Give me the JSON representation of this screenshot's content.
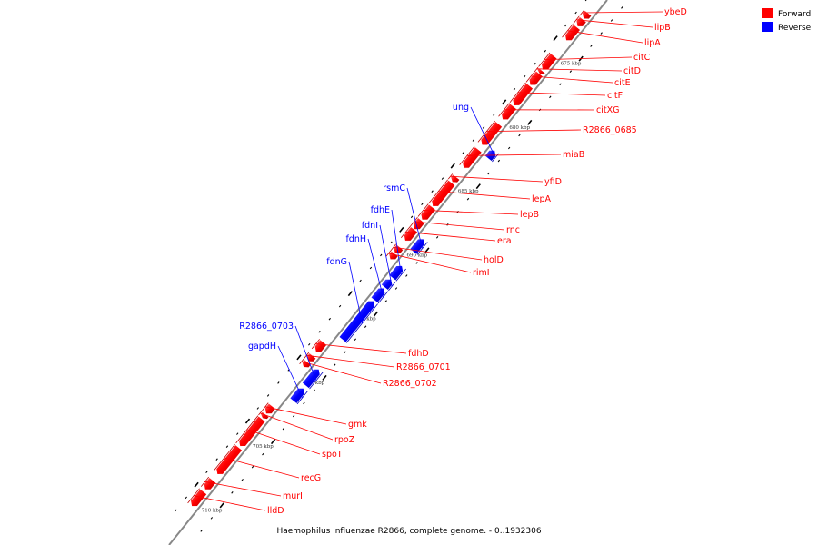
{
  "caption": "Haemophilus influenzae R2866, complete genome. - 0..1932306",
  "legend": [
    {
      "label": "Forward",
      "color": "#ff0000"
    },
    {
      "label": "Reverse",
      "color": "#0000ff"
    }
  ],
  "colors": {
    "forward": "#ff0000",
    "reverse": "#0000ff",
    "axis": "#888888"
  },
  "ticks": [
    {
      "label": "675 kbp",
      "kbp": 675
    },
    {
      "label": "680 kbp",
      "kbp": 680
    },
    {
      "label": "685 kbp",
      "kbp": 685
    },
    {
      "label": "690 kbp",
      "kbp": 690
    },
    {
      "label": "695 kbp",
      "kbp": 695
    },
    {
      "label": "700 kbp",
      "kbp": 700
    },
    {
      "label": "705 kbp",
      "kbp": 705
    },
    {
      "label": "710 kbp",
      "kbp": 710
    }
  ],
  "genes": [
    {
      "name": "ybeD",
      "strand": "forward",
      "start_kbp": 672.55,
      "end_kbp": 673.0
    },
    {
      "name": "lipB",
      "strand": "forward",
      "start_kbp": 673.05,
      "end_kbp": 673.6
    },
    {
      "name": "lipA",
      "strand": "forward",
      "start_kbp": 673.65,
      "end_kbp": 674.7
    },
    {
      "name": "citC",
      "strand": "forward",
      "start_kbp": 675.9,
      "end_kbp": 677.0
    },
    {
      "name": "citD",
      "strand": "forward",
      "start_kbp": 677.05,
      "end_kbp": 677.3
    },
    {
      "name": "citE",
      "strand": "forward",
      "start_kbp": 677.3,
      "end_kbp": 678.2
    },
    {
      "name": "citF",
      "strand": "forward",
      "start_kbp": 678.25,
      "end_kbp": 679.8
    },
    {
      "name": "citXG",
      "strand": "forward",
      "start_kbp": 679.85,
      "end_kbp": 680.9
    },
    {
      "name": "R2866_0685",
      "strand": "forward",
      "start_kbp": 681.25,
      "end_kbp": 682.9
    },
    {
      "name": "ung",
      "strand": "reverse",
      "start_kbp": 682.65,
      "end_kbp": 683.3
    },
    {
      "name": "miaB",
      "strand": "forward",
      "start_kbp": 683.25,
      "end_kbp": 684.7
    },
    {
      "name": "yfiD",
      "strand": "forward",
      "start_kbp": 685.4,
      "end_kbp": 685.8
    },
    {
      "name": "lepA",
      "strand": "forward",
      "start_kbp": 685.85,
      "end_kbp": 687.7
    },
    {
      "name": "lepB",
      "strand": "forward",
      "start_kbp": 687.75,
      "end_kbp": 688.75
    },
    {
      "name": "rnc",
      "strand": "forward",
      "start_kbp": 688.8,
      "end_kbp": 689.5
    },
    {
      "name": "era",
      "strand": "forward",
      "start_kbp": 689.5,
      "end_kbp": 690.4
    },
    {
      "name": "rsmC",
      "strand": "reverse",
      "start_kbp": 689.6,
      "end_kbp": 690.6
    },
    {
      "name": "holD",
      "strand": "forward",
      "start_kbp": 690.9,
      "end_kbp": 691.4
    },
    {
      "name": "fdhE",
      "strand": "reverse",
      "start_kbp": 691.7,
      "end_kbp": 692.65
    },
    {
      "name": "rimI",
      "strand": "forward",
      "start_kbp": 691.4,
      "end_kbp": 691.85
    },
    {
      "name": "fdnI",
      "strand": "reverse",
      "start_kbp": 692.75,
      "end_kbp": 693.4
    },
    {
      "name": "fdnH",
      "strand": "reverse",
      "start_kbp": 693.45,
      "end_kbp": 694.4
    },
    {
      "name": "fdnG",
      "strand": "reverse",
      "start_kbp": 694.45,
      "end_kbp": 697.5
    },
    {
      "name": "fdhD",
      "strand": "forward",
      "start_kbp": 698.35,
      "end_kbp": 699.1
    },
    {
      "name": "R2866_0701",
      "strand": "forward",
      "start_kbp": 699.4,
      "end_kbp": 699.85
    },
    {
      "name": "R2866_0702",
      "strand": "forward",
      "start_kbp": 699.9,
      "end_kbp": 700.3
    },
    {
      "name": "R2866_0703",
      "strand": "reverse",
      "start_kbp": 699.8,
      "end_kbp": 701.1
    },
    {
      "name": "gapdH",
      "strand": "reverse",
      "start_kbp": 701.3,
      "end_kbp": 702.3
    },
    {
      "name": "gmk",
      "strand": "forward",
      "start_kbp": 703.35,
      "end_kbp": 703.95
    },
    {
      "name": "rpoZ",
      "strand": "forward",
      "start_kbp": 704.0,
      "end_kbp": 704.3
    },
    {
      "name": "spoT",
      "strand": "forward",
      "start_kbp": 704.35,
      "end_kbp": 706.5
    },
    {
      "name": "recG",
      "strand": "forward",
      "start_kbp": 706.6,
      "end_kbp": 708.7
    },
    {
      "name": "murI",
      "strand": "forward",
      "start_kbp": 709.15,
      "end_kbp": 709.9
    },
    {
      "name": "lldD",
      "strand": "forward",
      "start_kbp": 710.05,
      "end_kbp": 711.2
    }
  ]
}
